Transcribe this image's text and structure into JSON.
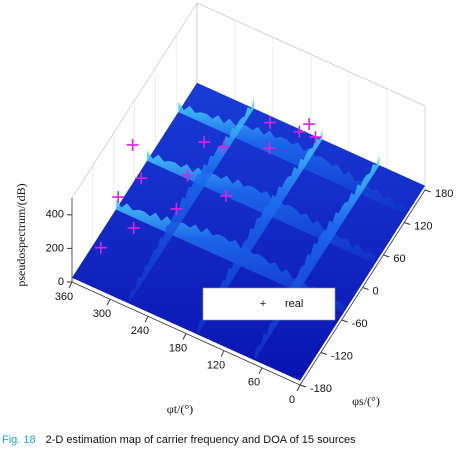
{
  "chart_data": {
    "type": "surface3d",
    "xlabel": "φt/(°)",
    "ylabel": "φs/(°)",
    "zlabel": "pseudospectrum/(dB)",
    "xlim": [
      0,
      360
    ],
    "xticks": [
      360,
      300,
      240,
      180,
      120,
      60,
      0
    ],
    "ylim": [
      -180,
      180
    ],
    "yticks": [
      180,
      120,
      60,
      0,
      -60,
      -120,
      -180
    ],
    "zlim": [
      0,
      500
    ],
    "zticks": [
      0,
      200,
      400
    ],
    "series": [
      {
        "name": "real",
        "color": "#e020e0",
        "x": [
          330,
          300,
          250,
          320,
          230,
          190,
          260,
          180,
          290,
          250,
          150,
          160,
          320,
          210,
          140
        ],
        "y": [
          -60,
          -90,
          0,
          -120,
          20,
          80,
          -30,
          60,
          -130,
          -80,
          120,
          110,
          -170,
          -10,
          120
        ],
        "z": [
          480,
          430,
          440,
          380,
          380,
          400,
          320,
          330,
          280,
          300,
          330,
          300,
          240,
          220,
          270
        ]
      }
    ],
    "caption": {
      "label": "Fig. 18",
      "text": "2-D estimation map of carrier frequency and DOA of 15 sources"
    }
  }
}
